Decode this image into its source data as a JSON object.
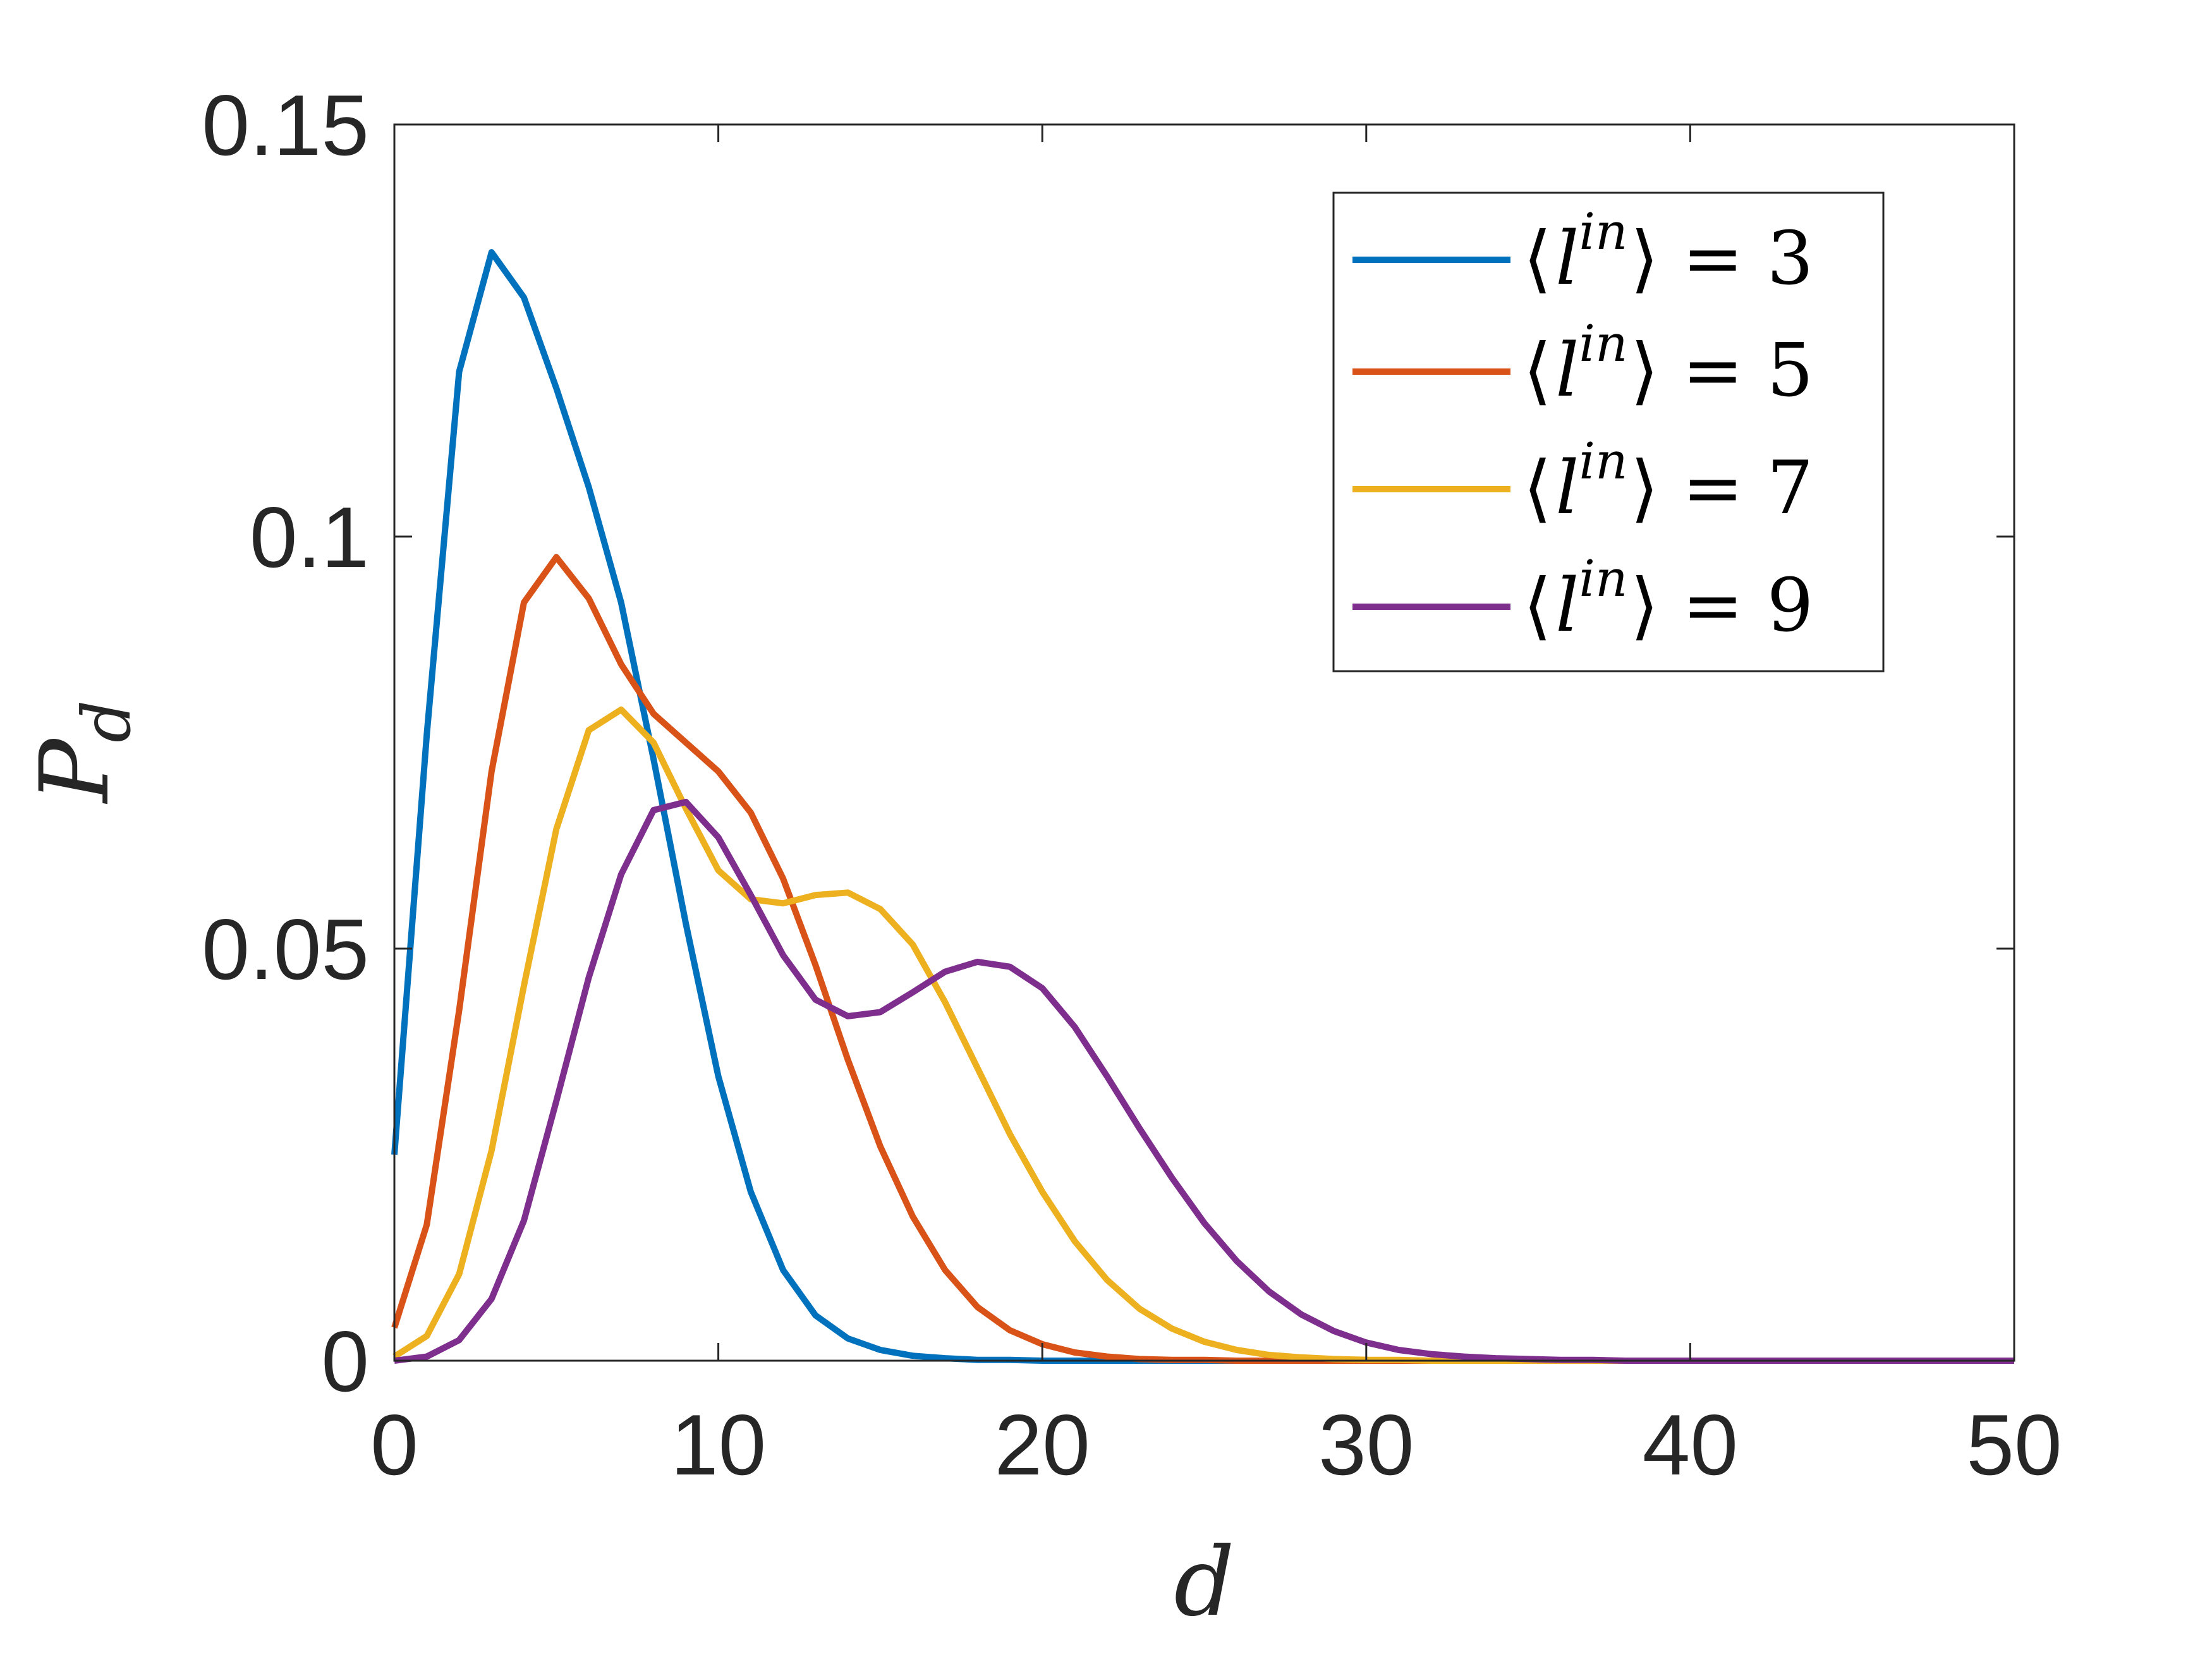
{
  "chart_data": {
    "type": "line",
    "xlabel": "d",
    "ylabel": "P_d",
    "xlim": [
      0,
      50
    ],
    "ylim": [
      0,
      0.15
    ],
    "xticks": [
      0,
      10,
      20,
      30,
      40,
      50
    ],
    "xtick_labels": [
      "0",
      "10",
      "20",
      "30",
      "40",
      "50"
    ],
    "yticks": [
      0,
      0.05,
      0.1,
      0.15
    ],
    "ytick_labels": [
      "0",
      "0.05",
      "0.1",
      "0.15"
    ],
    "grid": false,
    "legend_position": "top-right",
    "x": [
      0,
      1,
      2,
      3,
      4,
      5,
      6,
      7,
      8,
      9,
      10,
      11,
      12,
      13,
      14,
      15,
      16,
      17,
      18,
      19,
      20,
      21,
      22,
      23,
      24,
      25,
      26,
      27,
      28,
      29,
      30,
      31,
      32,
      33,
      34,
      35,
      36,
      37,
      38,
      39,
      40,
      41,
      42,
      43,
      44,
      45,
      46,
      47,
      48,
      49,
      50
    ],
    "series": [
      {
        "name": "⟨l^in⟩ = 3",
        "legend_value": "3",
        "color": "#0072BD",
        "values": [
          0.025,
          0.076,
          0.12,
          0.1345,
          0.129,
          0.118,
          0.106,
          0.092,
          0.073,
          0.053,
          0.0345,
          0.0205,
          0.011,
          0.0055,
          0.0027,
          0.0013,
          0.0006,
          0.0003,
          0.0001,
          0.0001,
          0,
          0,
          0,
          0,
          0,
          0,
          0,
          0,
          0,
          0,
          0,
          0,
          0,
          0,
          0,
          0,
          0,
          0,
          0,
          0,
          0,
          0,
          0,
          0,
          0,
          0,
          0,
          0,
          0,
          0,
          0
        ]
      },
      {
        "name": "⟨l^in⟩ = 5",
        "legend_value": "5",
        "color": "#D95319",
        "values": [
          0.004,
          0.0165,
          0.0425,
          0.0715,
          0.092,
          0.0975,
          0.0925,
          0.0845,
          0.0785,
          0.075,
          0.0715,
          0.0665,
          0.0585,
          0.048,
          0.0365,
          0.026,
          0.0175,
          0.011,
          0.0065,
          0.0037,
          0.002,
          0.001,
          0.0005,
          0.0002,
          0.0001,
          0.0001,
          0,
          0,
          0,
          0,
          0,
          0,
          0,
          0,
          0,
          0,
          0,
          0,
          0,
          0,
          0,
          0,
          0,
          0,
          0,
          0,
          0,
          0,
          0,
          0,
          0
        ]
      },
      {
        "name": "⟨l^in⟩ = 7",
        "legend_value": "7",
        "color": "#EDB120",
        "values": [
          0.0005,
          0.003,
          0.0105,
          0.0255,
          0.0455,
          0.0645,
          0.0765,
          0.079,
          0.075,
          0.067,
          0.0595,
          0.056,
          0.0555,
          0.0565,
          0.0568,
          0.0548,
          0.0505,
          0.0435,
          0.0355,
          0.0275,
          0.0205,
          0.0145,
          0.0098,
          0.0063,
          0.0039,
          0.0023,
          0.0013,
          0.0007,
          0.0004,
          0.0002,
          0.0001,
          0.0001,
          0,
          0,
          0,
          0,
          0,
          0,
          0,
          0,
          0,
          0,
          0,
          0,
          0,
          0,
          0,
          0,
          0,
          0,
          0
        ]
      },
      {
        "name": "⟨l^in⟩ = 9",
        "legend_value": "9",
        "color": "#7E2F8E",
        "values": [
          0,
          0.0005,
          0.0025,
          0.0075,
          0.017,
          0.0315,
          0.0465,
          0.059,
          0.0668,
          0.0678,
          0.0635,
          0.0565,
          0.0492,
          0.0438,
          0.0418,
          0.0423,
          0.0447,
          0.0472,
          0.0484,
          0.0478,
          0.0452,
          0.0405,
          0.0345,
          0.0282,
          0.0222,
          0.0167,
          0.0121,
          0.0084,
          0.0056,
          0.0036,
          0.0022,
          0.0013,
          0.0008,
          0.0005,
          0.0003,
          0.0002,
          0.0001,
          0.0001,
          0,
          0,
          0,
          0,
          0,
          0,
          0,
          0,
          0,
          0,
          0,
          0,
          0
        ]
      }
    ]
  }
}
